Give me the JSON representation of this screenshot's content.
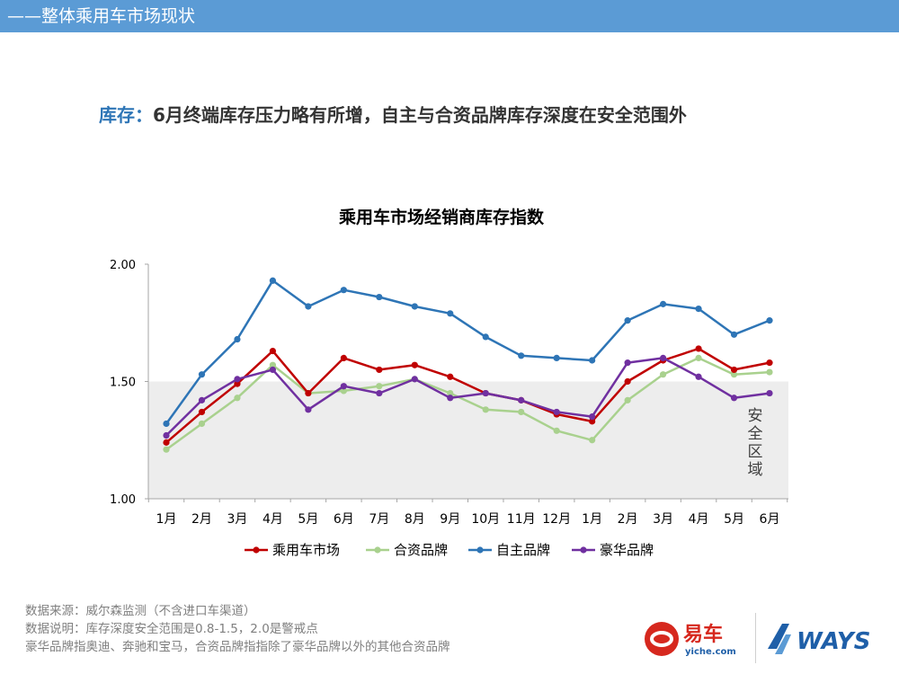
{
  "header": {
    "section_title": "——整体乘用车市场现状"
  },
  "headline": {
    "key": "库存：",
    "text": "6月终端库存压力略有所增，自主与合资品牌库存深度在安全范围外"
  },
  "chart_data": {
    "type": "line",
    "title": "乘用车市场经销商库存指数",
    "categories": [
      "1月",
      "2月",
      "3月",
      "4月",
      "5月",
      "6月",
      "7月",
      "8月",
      "9月",
      "10月",
      "11月",
      "12月",
      "1月",
      "2月",
      "3月",
      "4月",
      "5月",
      "6月"
    ],
    "y_ticks": [
      "2.00",
      "1.50",
      "1.00"
    ],
    "ylim": [
      1.0,
      2.0
    ],
    "grid": false,
    "legend_position": "bottom",
    "safe_zone": {
      "label": "安全区域",
      "range": [
        1.0,
        1.5
      ],
      "color": "#ededed"
    },
    "series": [
      {
        "name": "乘用车市场",
        "color": "#c00000",
        "values": [
          1.24,
          1.37,
          1.49,
          1.63,
          1.45,
          1.6,
          1.55,
          1.57,
          1.52,
          1.45,
          1.42,
          1.36,
          1.33,
          1.5,
          1.59,
          1.64,
          1.55,
          1.58
        ]
      },
      {
        "name": "合资品牌",
        "color": "#a9d18e",
        "values": [
          1.21,
          1.32,
          1.43,
          1.57,
          1.45,
          1.46,
          1.48,
          1.51,
          1.45,
          1.38,
          1.37,
          1.29,
          1.25,
          1.42,
          1.53,
          1.6,
          1.53,
          1.54
        ]
      },
      {
        "name": "自主品牌",
        "color": "#2e75b6",
        "values": [
          1.32,
          1.53,
          1.68,
          1.93,
          1.82,
          1.89,
          1.86,
          1.82,
          1.79,
          1.69,
          1.61,
          1.6,
          1.59,
          1.76,
          1.83,
          1.81,
          1.7,
          1.76
        ]
      },
      {
        "name": "豪华品牌",
        "color": "#7030a0",
        "values": [
          1.27,
          1.42,
          1.51,
          1.55,
          1.38,
          1.48,
          1.45,
          1.51,
          1.43,
          1.45,
          1.42,
          1.37,
          1.35,
          1.58,
          1.6,
          1.52,
          1.43,
          1.45
        ]
      }
    ]
  },
  "notes": [
    "数据来源：威尔森监测（不含进口车渠道）",
    "数据说明：库存深度安全范围是0.8-1.5，2.0是警戒点",
    "豪华品牌指奥迪、奔驰和宝马，合资品牌指指除了豪华品牌以外的其他合资品牌"
  ],
  "logos": {
    "yiche": {
      "cn": "易车",
      "en": "yiche.com",
      "color": "#d6281e"
    },
    "ways": {
      "text": "WAYS",
      "color": "#1f5fa8"
    }
  }
}
